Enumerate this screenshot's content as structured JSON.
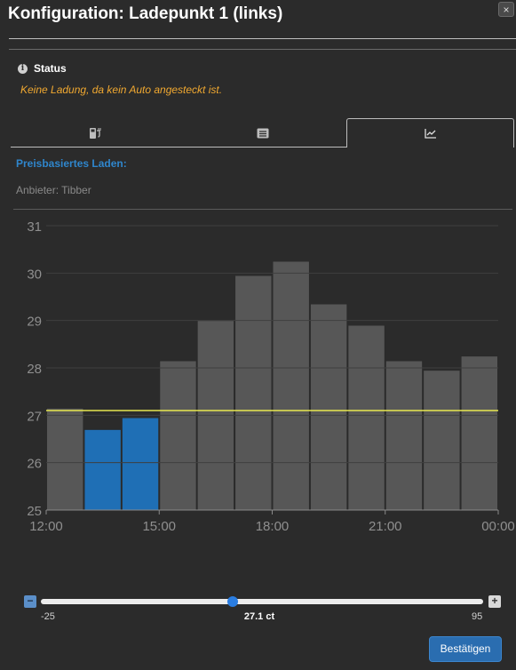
{
  "window": {
    "title": "Konfiguration: Ladepunkt 1 (links)",
    "close_label": "×",
    "close_icon": "close-icon"
  },
  "status": {
    "label": "Status",
    "icon": "info-icon",
    "icon_glyph": "i",
    "message": "Keine Ladung, da kein Auto angesteckt ist."
  },
  "tabs": [
    {
      "icon": "charging-station-icon",
      "active": false
    },
    {
      "icon": "list-icon",
      "active": false
    },
    {
      "icon": "line-chart-icon",
      "active": true
    }
  ],
  "pricing": {
    "title": "Preisbasiertes Laden:",
    "provider": "Anbieter: Tibber"
  },
  "chart_data": {
    "type": "bar",
    "title": "",
    "xlabel": "",
    "ylabel": "",
    "ylim": [
      25,
      31
    ],
    "yticks": [
      "25",
      "26",
      "27",
      "28",
      "29",
      "30",
      "31"
    ],
    "xticks": [
      {
        "label": "12:00",
        "hour": 12
      },
      {
        "label": "15:00",
        "hour": 15
      },
      {
        "label": "18:00",
        "hour": 18
      },
      {
        "label": "21:00",
        "hour": 21
      },
      {
        "label": "00:00",
        "hour": 24
      }
    ],
    "x_start_hour": 12,
    "values": [
      27.15,
      26.7,
      26.95,
      28.15,
      29.0,
      29.95,
      30.25,
      29.35,
      28.9,
      28.15,
      27.95,
      28.25
    ],
    "highlighted": [
      false,
      true,
      true,
      false,
      false,
      false,
      false,
      false,
      false,
      false,
      false,
      false
    ],
    "threshold": 27.1,
    "grid": true,
    "colors": {
      "bar": "#575757",
      "highlight": "#1f6fb5",
      "threshold": "#e8e850",
      "grid": "#3f3f3f",
      "tick": "#8f8f8f"
    }
  },
  "slider": {
    "min": -25,
    "max": 95,
    "value": 27.1,
    "min_label": "-25",
    "max_label": "95",
    "value_label": "27.1 ct",
    "minus": "−",
    "plus": "+"
  },
  "confirm_label": "Bestätigen"
}
